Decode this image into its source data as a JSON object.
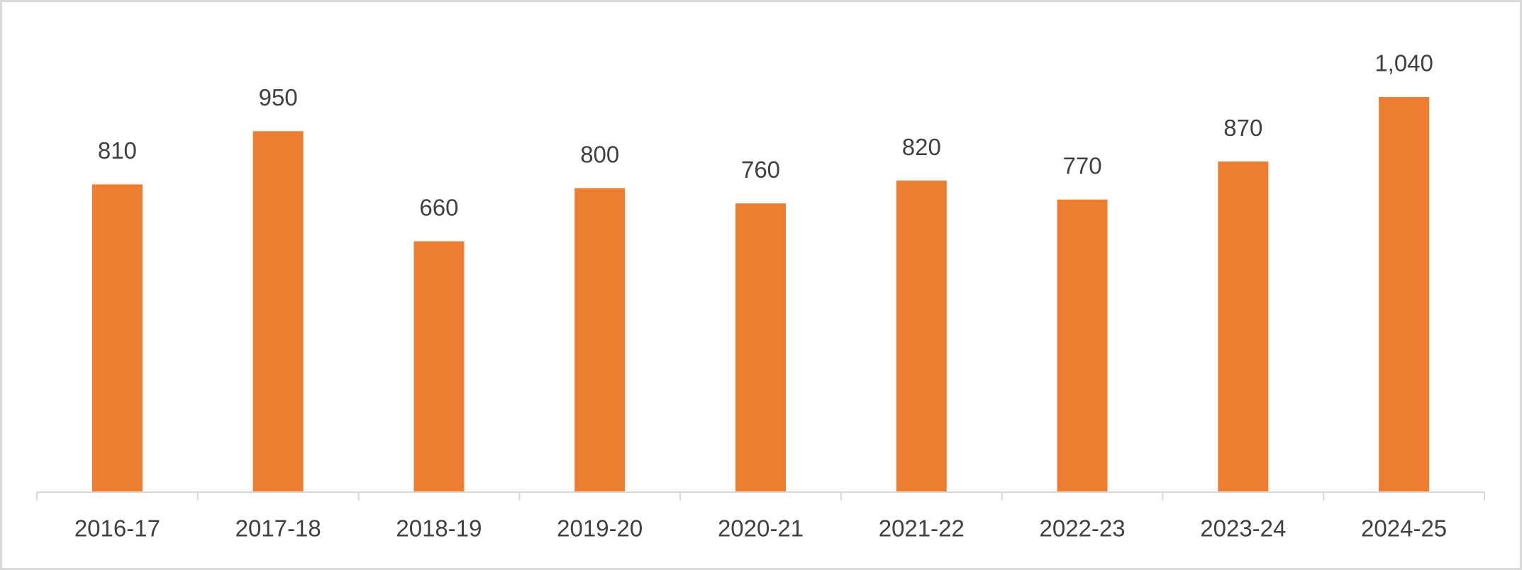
{
  "chart_data": {
    "type": "bar",
    "categories": [
      "2016-17",
      "2017-18",
      "2018-19",
      "2019-20",
      "2020-21",
      "2021-22",
      "2022-23",
      "2023-24",
      "2024-25"
    ],
    "values": [
      810,
      950,
      660,
      800,
      760,
      820,
      770,
      870,
      1040
    ],
    "value_labels": [
      "810",
      "950",
      "660",
      "800",
      "760",
      "820",
      "770",
      "870",
      "1,040"
    ],
    "color": "#ED7D31"
  }
}
